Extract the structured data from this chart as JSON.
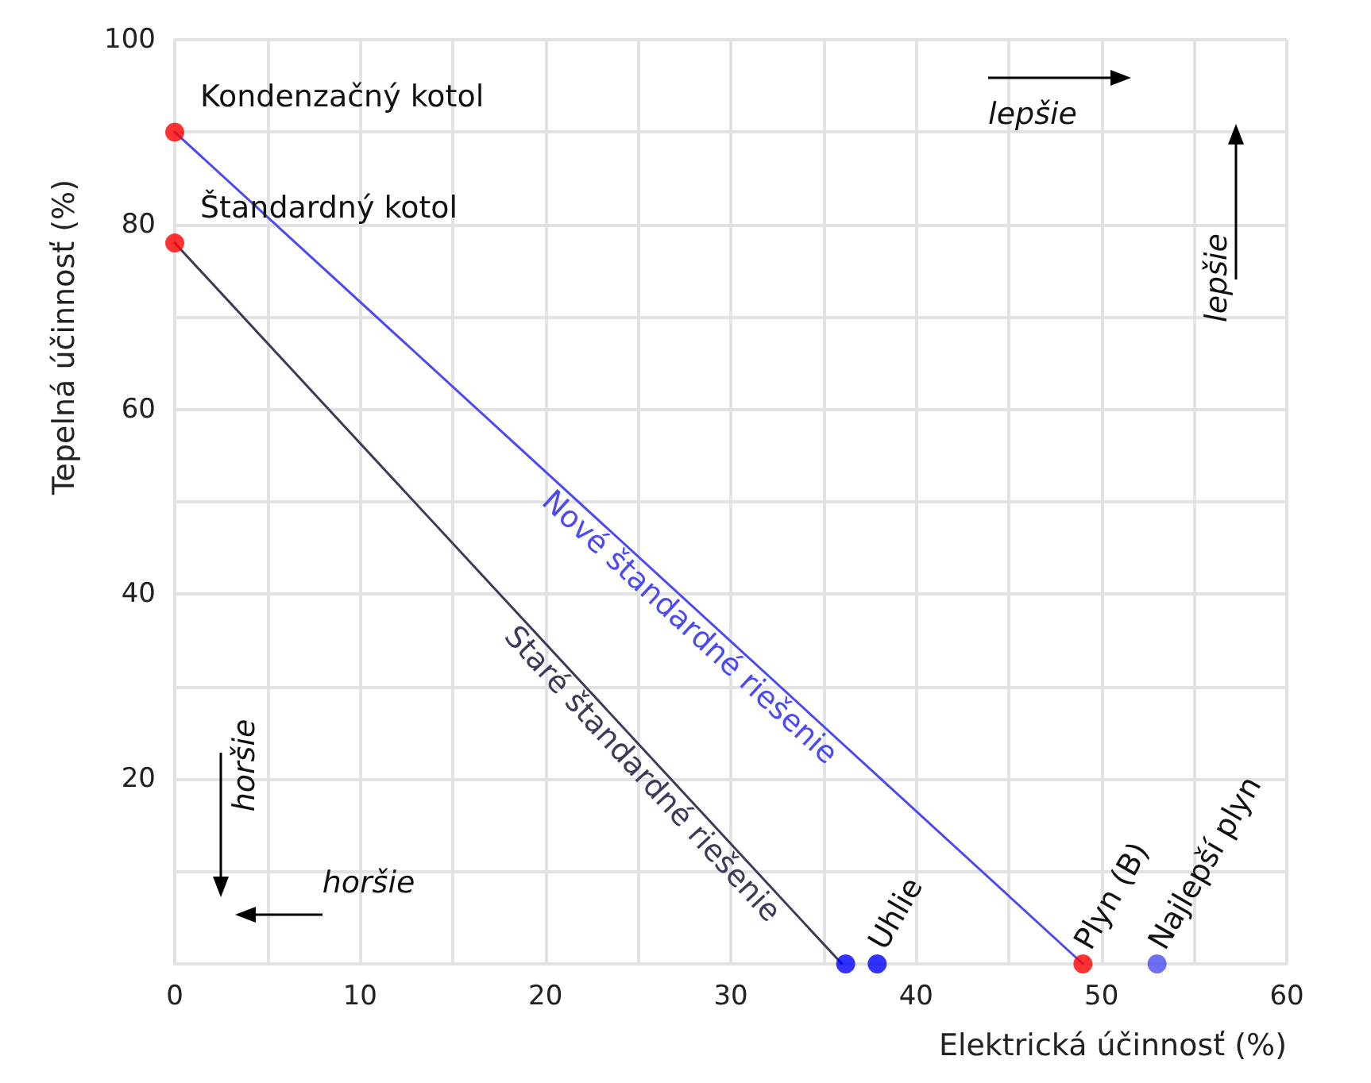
{
  "chart_data": {
    "type": "line",
    "xlabel": "Elektrická účinnosť (%)",
    "ylabel": "Tepelná účinnosť (%)",
    "xlim": [
      0,
      60
    ],
    "xticks": [
      0,
      10,
      20,
      30,
      40,
      50,
      60
    ],
    "ylim": [
      0,
      100
    ],
    "yticks": [
      {
        "value": 0,
        "label": null
      },
      20,
      40,
      60,
      80,
      100
    ],
    "grid": true,
    "legend": false,
    "series": [
      {
        "name": "Nové štandardné riešenie",
        "color": "#4b4bf0",
        "marker": "none",
        "x": [
          0,
          49
        ],
        "values": [
          90,
          0
        ]
      },
      {
        "name": "Staré štandardné riešenie",
        "color": "#3c3c5a",
        "marker": "none",
        "x": [
          0,
          36
        ],
        "values": [
          78,
          0
        ]
      },
      {
        "type": "scatter",
        "color": "#ff0000",
        "marker": "circle",
        "x": [
          0,
          0,
          49
        ],
        "values": [
          90,
          78,
          0
        ]
      },
      {
        "type": "scatter",
        "color": "#0000ff",
        "marker": "circle",
        "x": [
          36.2,
          37.9
        ],
        "values": [
          0,
          0
        ]
      },
      {
        "type": "scatter",
        "color": "#4b4bf0",
        "marker": "circle",
        "x": [
          53
        ],
        "values": [
          0
        ]
      }
    ],
    "annotations": [
      {
        "text": "Kondenzačný kotol",
        "x": 0,
        "y": 90
      },
      {
        "text": "Štandardný kotol",
        "x": 0,
        "y": 78
      },
      {
        "text": "Uhlie",
        "x": 37.9,
        "y": 0
      },
      {
        "text": "Plyn (B)",
        "x": 49,
        "y": 0
      },
      {
        "text": "Najlepší plyn",
        "x": 53,
        "y": 0
      },
      "lepšie",
      "lepšie",
      "horšie",
      "horšie"
    ]
  }
}
